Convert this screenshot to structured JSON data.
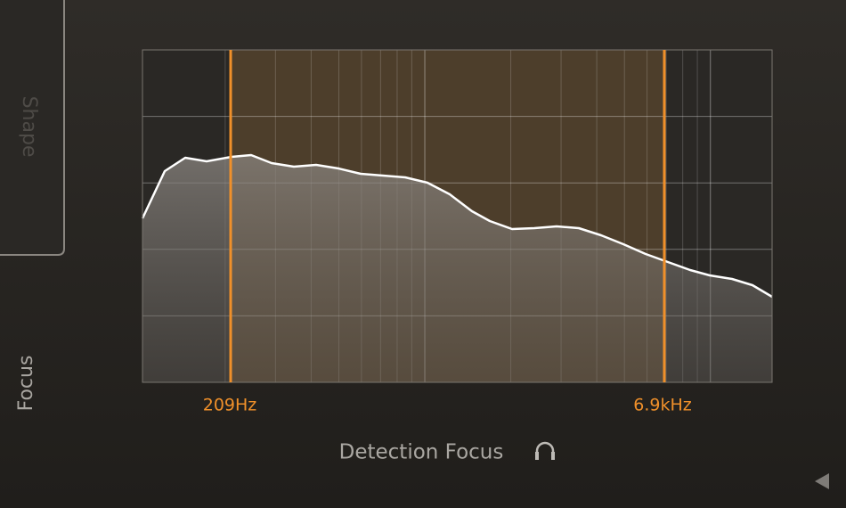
{
  "tabs": {
    "shape": "Shape",
    "focus": "Focus"
  },
  "focus": {
    "low_label": "209Hz",
    "high_label": "6.9kHz"
  },
  "footer": {
    "title": "Detection Focus"
  }
}
